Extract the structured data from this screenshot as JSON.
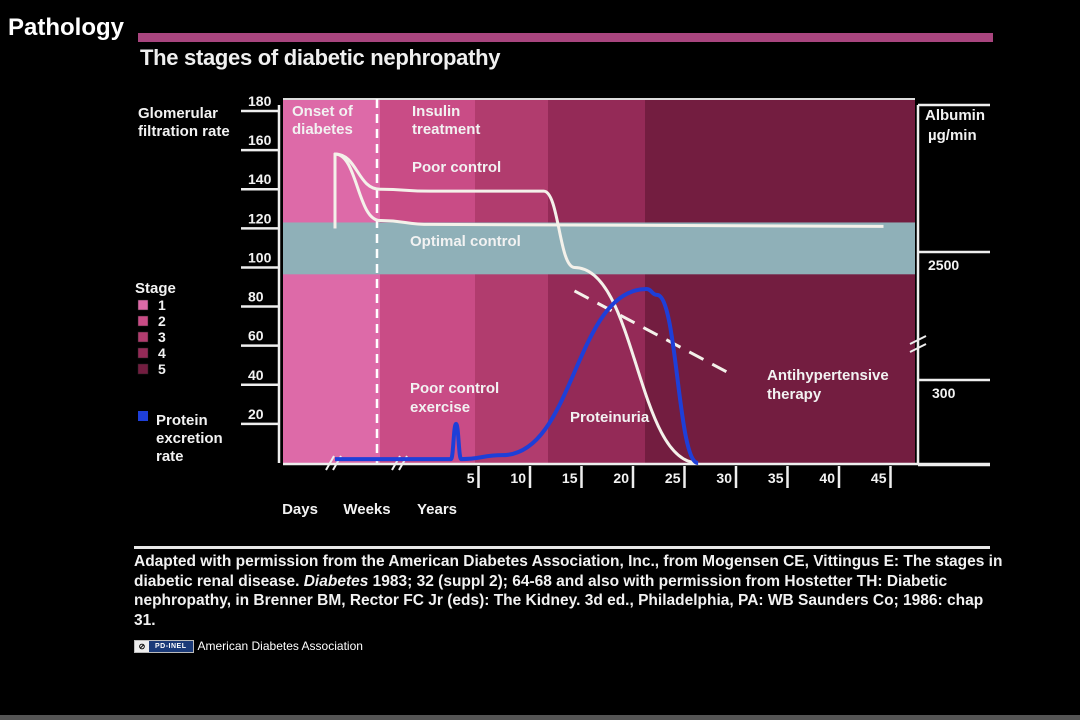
{
  "header": {
    "section": "Pathology",
    "title": "The stages of diabetic nephropathy"
  },
  "chart_data": {
    "type": "line",
    "title": "The stages of diabetic nephropathy",
    "ylabel_left": "Glomerular filtration rate",
    "ylabel_right": "Albumin µg / min",
    "y_ticks": [
      "180",
      "160",
      "140",
      "120",
      "100",
      "80",
      "60",
      "40",
      "20"
    ],
    "y_ticks_right": [
      "2500",
      "300"
    ],
    "x_ticks": [
      "5",
      "10",
      "15",
      "20",
      "25",
      "30",
      "35",
      "40",
      "45"
    ],
    "x_units": [
      "Days",
      "Weeks",
      "Years"
    ],
    "ylim": [
      0,
      180
    ],
    "xlim": [
      0,
      45
    ],
    "stage_legend_title": "Stage",
    "stages": [
      "1",
      "2",
      "3",
      "4",
      "5"
    ],
    "stage_colors": [
      "#dd6aa8",
      "#c94c86",
      "#b13c6e",
      "#942a57",
      "#731d40"
    ],
    "protein_legend_label": [
      "Protein",
      "excretion",
      "rate"
    ],
    "protein_color": "#1e3fd8",
    "optimal_band_color": "#8fb0b8",
    "annotations": {
      "onset": [
        "Onset of",
        "diabetes"
      ],
      "insulin": [
        "Insulin",
        "treatment"
      ],
      "poor_control": "Poor control",
      "optimal_control": "Optimal control",
      "poor_exercise": [
        "Poor control",
        "exercise"
      ],
      "proteinuria": "Proteinuria",
      "antihypertensive": [
        "Antihypertensive",
        "therapy"
      ]
    },
    "series": [
      {
        "name": "Poor control",
        "points": [
          [
            "Days",
            120
          ],
          [
            "Days",
            158
          ],
          [
            "Weeks",
            140
          ],
          [
            1,
            139
          ],
          [
            12,
            139
          ],
          [
            15,
            100
          ],
          [
            27,
            0
          ]
        ]
      },
      {
        "name": "Optimal control",
        "points": [
          [
            "Days",
            120
          ],
          [
            "Days",
            158
          ],
          [
            "Weeks",
            124
          ],
          [
            1,
            122
          ],
          [
            45,
            121
          ]
        ]
      },
      {
        "name": "Antihypertensive therapy",
        "points": [
          [
            15,
            88
          ],
          [
            30,
            46
          ]
        ]
      },
      {
        "name": "Protein excretion rate",
        "points": [
          [
            "Days",
            2
          ],
          [
            "Weeks",
            2
          ],
          [
            3,
            2
          ],
          [
            3.5,
            20
          ],
          [
            4,
            2
          ],
          [
            8,
            4
          ],
          [
            22,
            89
          ],
          [
            23,
            86
          ],
          [
            27,
            0
          ]
        ]
      }
    ]
  },
  "caption": {
    "pre": "Adapted with permission from the American Diabetes Association, Inc., from Mogensen CE, Vittingus E: The stages in diabetic renal disease. ",
    "journal": "Diabetes",
    "post": " 1983; 32 (suppl 2); 64-68 and also with permission from Hostetter TH: Diabetic nephropathy, in Brenner BM, Rector FC Jr (eds): The Kidney. 3d ed., Philadelphia, PA: WB Saunders Co; 1986: chap 31."
  },
  "license": {
    "badge": "PD-INEL",
    "credit": "American Diabetes Association"
  }
}
